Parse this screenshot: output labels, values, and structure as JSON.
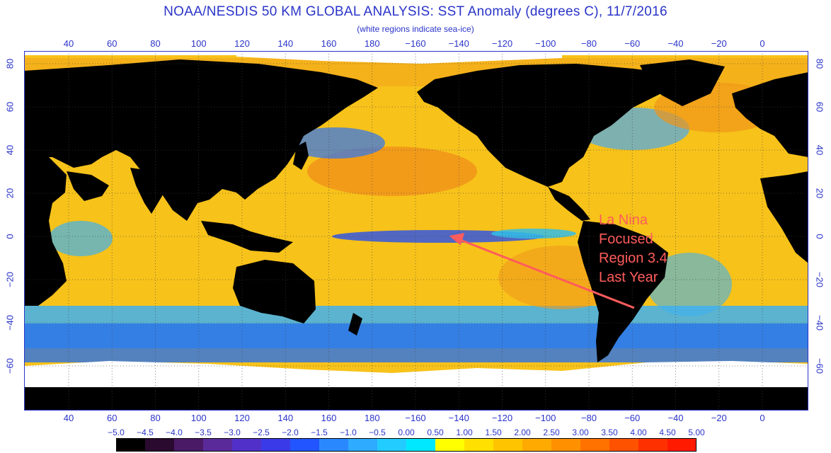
{
  "title": "NOAA/NESDIS 50 KM GLOBAL ANALYSIS: SST Anomaly (degrees C), 11/7/2016",
  "subtitle": "(white regions indicate sea-ice)",
  "longitude_labels_top": [
    "40",
    "60",
    "80",
    "100",
    "120",
    "140",
    "160",
    "180",
    "−160",
    "−140",
    "−120",
    "−100",
    "−80",
    "−60",
    "−40",
    "−20",
    "0"
  ],
  "longitude_labels_bottom": [
    "40",
    "60",
    "80",
    "100",
    "120",
    "140",
    "160",
    "180",
    "−160",
    "−140",
    "−120",
    "−100",
    "−80",
    "−60",
    "−40",
    "−20",
    "0"
  ],
  "latitude_labels_left": [
    "80",
    "60",
    "40",
    "20",
    "0",
    "−20",
    "−40",
    "−60"
  ],
  "latitude_labels_right": [
    "80",
    "60",
    "40",
    "20",
    "0",
    "−20",
    "−40",
    "−60"
  ],
  "annotation": {
    "lines": [
      "La Nina",
      "Focused",
      "Region 3.4",
      "Last Year"
    ],
    "color": "#ff5c5c"
  },
  "colorbar": {
    "labels": [
      "−5.0",
      "−4.5",
      "−4.0",
      "−3.5",
      "−3.0",
      "−2.5",
      "−2.0",
      "−1.5",
      "−1.0",
      "−0.5",
      "0.00",
      "0.50",
      "1.00",
      "1.50",
      "2.00",
      "2.50",
      "3.00",
      "3.50",
      "4.00",
      "4.50",
      "5.00"
    ],
    "colors": [
      "#000000",
      "#2a0a2e",
      "#4a1a66",
      "#5a2a9a",
      "#5030c8",
      "#3b3ae8",
      "#2255ff",
      "#2a88ff",
      "#2eaaff",
      "#22ccff",
      "#00e8ff",
      "#ffff00",
      "#ffe000",
      "#ffc400",
      "#ffaa00",
      "#ff9000",
      "#ff7200",
      "#ff5200",
      "#ff3000",
      "#ff1a00"
    ]
  },
  "colors": {
    "text": "#2a34c8",
    "land": "#000000",
    "ice": "#ffffff",
    "ocean_base": "#f7c21a",
    "arrow": "#ff5c5c"
  }
}
